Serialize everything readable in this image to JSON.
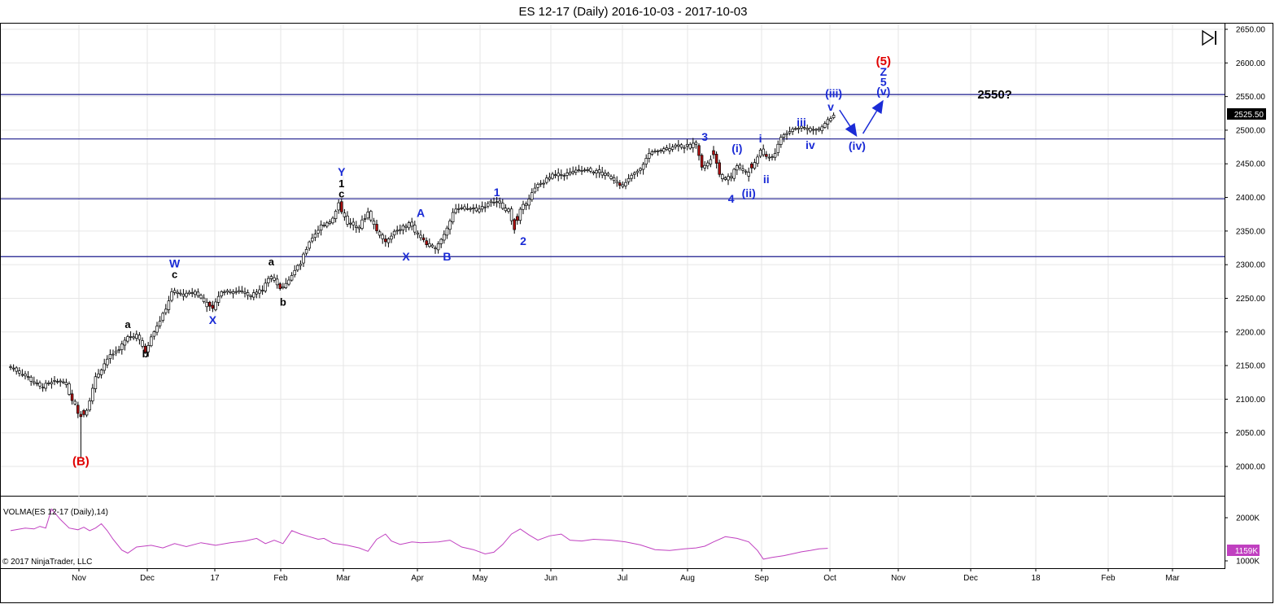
{
  "title": "ES 12-17 (Daily)  2016-10-03 - 2017-10-03",
  "copyright": "© 2017 NinjaTrader, LLC",
  "indicator_label": "VOLMA(ES 12-17 (Daily),14)",
  "last_price_label": "2525.50",
  "volume_badge": "1159K",
  "forward_icon": "skip-forward-icon",
  "colors": {
    "up_candle": "#ffffff",
    "down_candle": "#b01010",
    "horizontal_line": "#1a1a8c",
    "volma_line": "#c040c0",
    "wave_blue": "#1a2bd6",
    "wave_red": "#e00000",
    "wave_black": "#000000",
    "arrow_blue": "#1a2bd6"
  },
  "chart_data": {
    "type": "candlestick",
    "title": "ES 12-17 (Daily)  2016-10-03 - 2017-10-03",
    "y_ticks": [
      "2650.00",
      "2600.00",
      "2550.00",
      "2500.00",
      "2450.00",
      "2400.00",
      "2350.00",
      "2300.00",
      "2250.00",
      "2200.00",
      "2150.00",
      "2100.00",
      "2050.00",
      "2000.00"
    ],
    "ylim": [
      1960,
      2660
    ],
    "x_ticks": [
      "Nov",
      "Dec",
      "17",
      "Feb",
      "Mar",
      "Apr",
      "May",
      "Jun",
      "Jul",
      "Aug",
      "Sep",
      "Oct",
      "Nov",
      "Dec",
      "18",
      "Feb",
      "Mar"
    ],
    "horizontal_lines": [
      2553,
      2487,
      2398,
      2312
    ],
    "anchor_prices": [
      [
        0,
        2148
      ],
      [
        5,
        2135
      ],
      [
        10,
        2118
      ],
      [
        15,
        2125
      ],
      [
        18,
        2128
      ],
      [
        21,
        2100
      ],
      [
        24,
        2072
      ],
      [
        26,
        2085
      ],
      [
        29,
        2132
      ],
      [
        33,
        2160
      ],
      [
        37,
        2175
      ],
      [
        40,
        2192
      ],
      [
        43,
        2195
      ],
      [
        46,
        2170
      ],
      [
        48,
        2195
      ],
      [
        52,
        2225
      ],
      [
        55,
        2258
      ],
      [
        60,
        2255
      ],
      [
        63,
        2260
      ],
      [
        67,
        2240
      ],
      [
        69,
        2232
      ],
      [
        72,
        2262
      ],
      [
        78,
        2260
      ],
      [
        82,
        2255
      ],
      [
        86,
        2263
      ],
      [
        89,
        2285
      ],
      [
        92,
        2265
      ],
      [
        95,
        2280
      ],
      [
        99,
        2302
      ],
      [
        102,
        2335
      ],
      [
        106,
        2358
      ],
      [
        110,
        2368
      ],
      [
        112,
        2390
      ],
      [
        115,
        2362
      ],
      [
        119,
        2357
      ],
      [
        122,
        2378
      ],
      [
        125,
        2350
      ],
      [
        128,
        2335
      ],
      [
        131,
        2350
      ],
      [
        134,
        2355
      ],
      [
        136,
        2362
      ],
      [
        139,
        2345
      ],
      [
        142,
        2330
      ],
      [
        145,
        2322
      ],
      [
        148,
        2345
      ],
      [
        151,
        2378
      ],
      [
        155,
        2385
      ],
      [
        160,
        2382
      ],
      [
        164,
        2395
      ],
      [
        167,
        2390
      ],
      [
        170,
        2380
      ],
      [
        172,
        2355
      ],
      [
        174,
        2380
      ],
      [
        177,
        2400
      ],
      [
        180,
        2418
      ],
      [
        185,
        2432
      ],
      [
        190,
        2435
      ],
      [
        195,
        2440
      ],
      [
        200,
        2438
      ],
      [
        205,
        2430
      ],
      [
        209,
        2418
      ],
      [
        214,
        2440
      ],
      [
        218,
        2463
      ],
      [
        223,
        2472
      ],
      [
        227,
        2477
      ],
      [
        232,
        2476
      ],
      [
        234,
        2482
      ],
      [
        236,
        2448
      ],
      [
        238,
        2450
      ],
      [
        240,
        2465
      ],
      [
        242,
        2435
      ],
      [
        244,
        2425
      ],
      [
        246,
        2432
      ],
      [
        248,
        2447
      ],
      [
        250,
        2442
      ],
      [
        252,
        2432
      ],
      [
        254,
        2452
      ],
      [
        256,
        2470
      ],
      [
        258,
        2458
      ],
      [
        261,
        2465
      ],
      [
        263,
        2492
      ],
      [
        266,
        2500
      ],
      [
        268,
        2505
      ],
      [
        271,
        2502
      ],
      [
        274,
        2500
      ],
      [
        277,
        2505
      ],
      [
        279,
        2515
      ],
      [
        281,
        2525
      ]
    ],
    "down_candle_indices": [
      21,
      23,
      24,
      25,
      46,
      68,
      69,
      92,
      113,
      125,
      128,
      141,
      142,
      172,
      173,
      208,
      235,
      236,
      240,
      241,
      242,
      253,
      258
    ],
    "wave_labels": [
      {
        "text": "(B)",
        "price": 2008,
        "day": 24,
        "color": "red"
      },
      {
        "text": "a",
        "price": 2212,
        "day": 40,
        "color": "black"
      },
      {
        "text": "b",
        "price": 2168,
        "day": 46,
        "color": "black"
      },
      {
        "text": "c",
        "price": 2286,
        "day": 56,
        "color": "black"
      },
      {
        "text": "W",
        "price": 2302,
        "day": 56,
        "color": "blue"
      },
      {
        "text": "X",
        "price": 2218,
        "day": 69,
        "color": "blue"
      },
      {
        "text": "a",
        "price": 2305,
        "day": 89,
        "color": "black"
      },
      {
        "text": "b",
        "price": 2245,
        "day": 93,
        "color": "black"
      },
      {
        "text": "c",
        "price": 2406,
        "day": 113,
        "color": "black"
      },
      {
        "text": "1",
        "price": 2421,
        "day": 113,
        "color": "black"
      },
      {
        "text": "Y",
        "price": 2438,
        "day": 113,
        "color": "blue"
      },
      {
        "text": "X",
        "price": 2312,
        "day": 135,
        "color": "blue"
      },
      {
        "text": "A",
        "price": 2377,
        "day": 140,
        "color": "blue"
      },
      {
        "text": "B",
        "price": 2312,
        "day": 149,
        "color": "blue"
      },
      {
        "text": "1",
        "price": 2408,
        "day": 166,
        "color": "blue"
      },
      {
        "text": "2",
        "price": 2335,
        "day": 175,
        "color": "blue"
      },
      {
        "text": "3",
        "price": 2490,
        "day": 237,
        "color": "blue"
      },
      {
        "text": "4",
        "price": 2398,
        "day": 246,
        "color": "blue"
      },
      {
        "text": "(i)",
        "price": 2473,
        "day": 248,
        "color": "blue"
      },
      {
        "text": "(ii)",
        "price": 2407,
        "day": 252,
        "color": "blue"
      },
      {
        "text": "i",
        "price": 2488,
        "day": 256,
        "color": "blue"
      },
      {
        "text": "ii",
        "price": 2427,
        "day": 258,
        "color": "blue"
      },
      {
        "text": "iii",
        "price": 2512,
        "day": 270,
        "color": "blue"
      },
      {
        "text": "iv",
        "price": 2478,
        "day": 273,
        "color": "blue"
      },
      {
        "text": "v",
        "price": 2535,
        "day": 280,
        "color": "blue"
      },
      {
        "text": "(iii)",
        "price": 2555,
        "day": 281,
        "color": "blue"
      },
      {
        "text": "(iv)",
        "price": 2477,
        "day": 289,
        "color": "blue"
      },
      {
        "text": "(v)",
        "price": 2558,
        "day": 298,
        "color": "blue"
      },
      {
        "text": "5",
        "price": 2572,
        "day": 298,
        "color": "blue"
      },
      {
        "text": "Z",
        "price": 2587,
        "day": 298,
        "color": "blue"
      },
      {
        "text": "(5)",
        "price": 2603,
        "day": 298,
        "color": "red"
      },
      {
        "text": "2550?",
        "price": 2553,
        "day": 336,
        "color": "black"
      }
    ],
    "projection_arrows": [
      {
        "from": [
          283,
          2530
        ],
        "to": [
          289,
          2490
        ]
      },
      {
        "from": [
          291,
          2495
        ],
        "to": [
          298,
          2545
        ]
      }
    ],
    "volume_axis": [
      "2000K",
      "1000K"
    ],
    "volma_series": [
      [
        0,
        1700
      ],
      [
        5,
        1760
      ],
      [
        8,
        1740
      ],
      [
        10,
        1800
      ],
      [
        12,
        1760
      ],
      [
        14,
        2200
      ],
      [
        17,
        1960
      ],
      [
        20,
        1760
      ],
      [
        23,
        1720
      ],
      [
        25,
        1780
      ],
      [
        27,
        1700
      ],
      [
        29,
        1760
      ],
      [
        31,
        1860
      ],
      [
        33,
        1700
      ],
      [
        35,
        1500
      ],
      [
        38,
        1250
      ],
      [
        40,
        1180
      ],
      [
        43,
        1320
      ],
      [
        48,
        1360
      ],
      [
        52,
        1300
      ],
      [
        56,
        1400
      ],
      [
        60,
        1330
      ],
      [
        65,
        1420
      ],
      [
        70,
        1360
      ],
      [
        75,
        1420
      ],
      [
        80,
        1460
      ],
      [
        84,
        1520
      ],
      [
        87,
        1400
      ],
      [
        90,
        1480
      ],
      [
        93,
        1400
      ],
      [
        96,
        1700
      ],
      [
        99,
        1620
      ],
      [
        102,
        1560
      ],
      [
        105,
        1500
      ],
      [
        107,
        1520
      ],
      [
        110,
        1410
      ],
      [
        115,
        1360
      ],
      [
        119,
        1300
      ],
      [
        122,
        1220
      ],
      [
        125,
        1500
      ],
      [
        128,
        1620
      ],
      [
        130,
        1460
      ],
      [
        133,
        1380
      ],
      [
        137,
        1440
      ],
      [
        140,
        1420
      ],
      [
        146,
        1440
      ],
      [
        150,
        1480
      ],
      [
        154,
        1320
      ],
      [
        158,
        1260
      ],
      [
        162,
        1160
      ],
      [
        165,
        1200
      ],
      [
        168,
        1380
      ],
      [
        171,
        1620
      ],
      [
        174,
        1740
      ],
      [
        177,
        1600
      ],
      [
        180,
        1480
      ],
      [
        184,
        1580
      ],
      [
        188,
        1620
      ],
      [
        191,
        1480
      ],
      [
        195,
        1460
      ],
      [
        199,
        1500
      ],
      [
        205,
        1480
      ],
      [
        210,
        1440
      ],
      [
        215,
        1370
      ],
      [
        220,
        1260
      ],
      [
        225,
        1240
      ],
      [
        230,
        1280
      ],
      [
        234,
        1300
      ],
      [
        237,
        1340
      ],
      [
        240,
        1440
      ],
      [
        244,
        1560
      ],
      [
        248,
        1520
      ],
      [
        252,
        1440
      ],
      [
        255,
        1240
      ],
      [
        257,
        1040
      ],
      [
        260,
        1080
      ],
      [
        264,
        1120
      ],
      [
        268,
        1180
      ],
      [
        270,
        1210
      ],
      [
        273,
        1240
      ],
      [
        276,
        1280
      ],
      [
        279,
        1290
      ]
    ]
  }
}
